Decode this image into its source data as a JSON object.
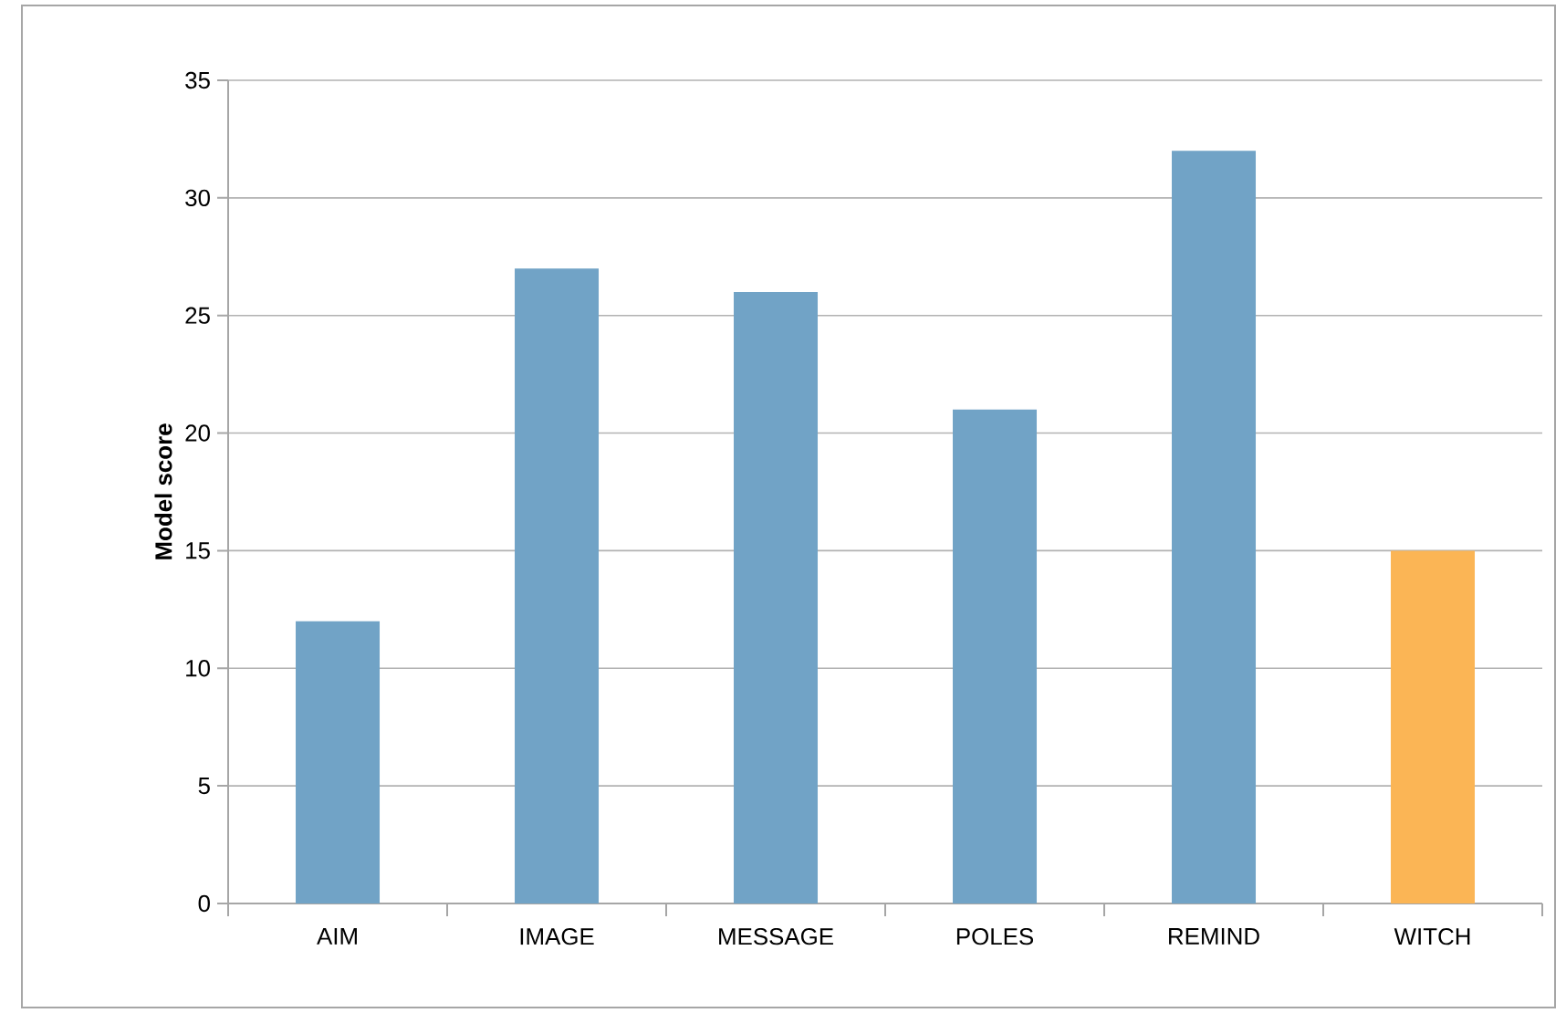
{
  "chart_data": {
    "type": "bar",
    "ylabel": "Model score",
    "categories": [
      "AIM",
      "IMAGE",
      "MESSAGE",
      "POLES",
      "REMIND",
      "WITCH"
    ],
    "values": [
      12,
      27,
      26,
      21,
      32,
      15
    ],
    "colors": [
      "#71a3c6",
      "#71a3c6",
      "#71a3c6",
      "#71a3c6",
      "#71a3c6",
      "#fbb555"
    ],
    "ylim": [
      0,
      35
    ],
    "yticks": [
      0,
      5,
      10,
      15,
      20,
      25,
      30,
      35
    ],
    "grid": "y"
  }
}
